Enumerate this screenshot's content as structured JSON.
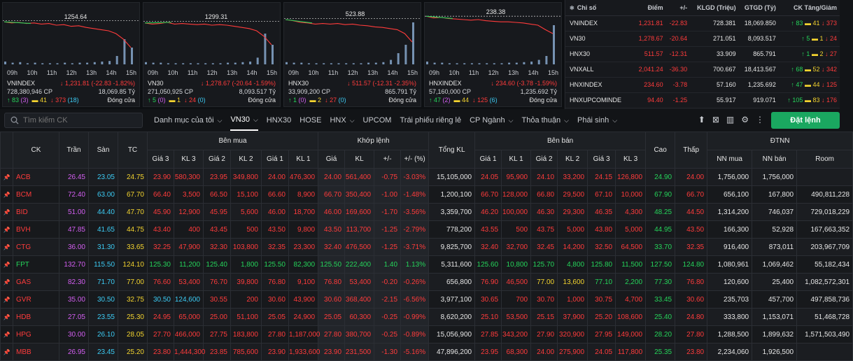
{
  "mini_charts": [
    {
      "name": "VNINDEX",
      "ref": "1254.64",
      "change": "1,231.81 (-22.83 -1.82%)",
      "volume": "728,380,946 CP",
      "value": "18,069.85 Tỷ",
      "up": "83",
      "up_c": "(3)",
      "flat": "41",
      "down": "373",
      "down_f": "(18)",
      "status": "Đóng cửa"
    },
    {
      "name": "VN30",
      "ref": "1299.31",
      "change": "1,278.67 (-20.64 -1.59%)",
      "volume": "271,050,925 CP",
      "value": "8,093.517 Tỷ",
      "up": "5",
      "up_c": "(0)",
      "flat": "1",
      "down": "24",
      "down_f": "(0)",
      "status": "Đóng cửa"
    },
    {
      "name": "HNX30",
      "ref": "523.88",
      "change": "511.57 (-12.31 -2.35%)",
      "volume": "33,909,200 CP",
      "value": "865.791 Tỷ",
      "up": "1",
      "up_c": "(0)",
      "flat": "2",
      "down": "27",
      "down_f": "(0)",
      "status": "Đóng cửa"
    },
    {
      "name": "HNXINDEX",
      "ref": "238.38",
      "change": "234.60 (-3.78 -1.59%)",
      "volume": "57,160,000 CP",
      "value": "1,235.692 Tỷ",
      "up": "47",
      "up_c": "(2)",
      "flat": "44",
      "down": "125",
      "down_f": "(6)",
      "status": "Đóng cửa"
    }
  ],
  "time_ticks": [
    "09h",
    "10h",
    "11h",
    "12h",
    "13h",
    "14h",
    "15h"
  ],
  "index_table": {
    "headers": [
      "Chỉ số",
      "Điểm",
      "+/-",
      "KLGD (Triệu)",
      "GTGD (Tỷ)",
      "CK Tăng/Giảm"
    ],
    "rows": [
      {
        "name": "VNINDEX",
        "point": "1,231.81",
        "chg": "-22.83",
        "vol": "728.381",
        "val": "18,069.850",
        "up": "83",
        "flat": "41",
        "down": "373"
      },
      {
        "name": "VN30",
        "point": "1,278.67",
        "chg": "-20.64",
        "vol": "271.051",
        "val": "8,093.517",
        "up": "5",
        "flat": "1",
        "down": "24"
      },
      {
        "name": "HNX30",
        "point": "511.57",
        "chg": "-12.31",
        "vol": "33.909",
        "val": "865.791",
        "up": "1",
        "flat": "2",
        "down": "27"
      },
      {
        "name": "VNXALL",
        "point": "2,041.24",
        "chg": "-36.30",
        "vol": "700.667",
        "val": "18,413.567",
        "up": "68",
        "flat": "52",
        "down": "342"
      },
      {
        "name": "HNXINDEX",
        "point": "234.60",
        "chg": "-3.78",
        "vol": "57.160",
        "val": "1,235.692",
        "up": "47",
        "flat": "44",
        "down": "125"
      },
      {
        "name": "HNXUPCOMINDE",
        "point": "94.40",
        "chg": "-1.25",
        "vol": "55.917",
        "val": "919.071",
        "up": "105",
        "flat": "83",
        "down": "176"
      }
    ]
  },
  "toolbar": {
    "search_placeholder": "Tìm kiếm CK",
    "tabs": [
      "Danh mục của tôi",
      "VN30",
      "HNX30",
      "HOSE",
      "HNX",
      "UPCOM",
      "Trái phiếu riêng lẻ",
      "CP Ngành",
      "Thỏa thuận",
      "Phái sinh"
    ],
    "order_label": "Đặt lệnh"
  },
  "board": {
    "group_headers": {
      "buy": "Bên mua",
      "match": "Khớp lệnh",
      "sell": "Bên bán",
      "foreign": "ĐTNN"
    },
    "headers": {
      "ck": "CK",
      "tran": "Trần",
      "san": "Sàn",
      "tc": "TC",
      "g3": "Giá 3",
      "kl3": "KL 3",
      "g2": "Giá 2",
      "kl2": "KL 2",
      "g1": "Giá 1",
      "kl1": "KL 1",
      "mp": "Giá",
      "mv": "KL",
      "mc": "+/-",
      "mpct": "+/- (%)",
      "total": "Tổng KL",
      "s1": "Giá 1",
      "sv1": "KL 1",
      "s2": "Giá 2",
      "sv2": "KL 2",
      "s3": "Giá 3",
      "sv3": "KL 3",
      "high": "Cao",
      "low": "Thấp",
      "nnbuy": "NN mua",
      "nnsell": "NN bán",
      "room": "Room"
    },
    "rows": [
      [
        "ACB",
        "26.45",
        "23.05",
        "24.75",
        "23.90",
        "580,300",
        "23.95",
        "349,800",
        "24.00",
        "476,300",
        "24.00",
        "561,400",
        "-0.75",
        "-3.03%",
        "15,105,000",
        "24.05",
        "95,900",
        "24.10",
        "33,200",
        "24.15",
        "126,800",
        "24.90",
        "24.00",
        "1,756,000",
        "1,756,000",
        ""
      ],
      [
        "BCM",
        "72.40",
        "63.00",
        "67.70",
        "66.40",
        "3,500",
        "66.50",
        "15,100",
        "66.60",
        "8,900",
        "66.70",
        "350,400",
        "-1.00",
        "-1.48%",
        "1,200,100",
        "66.70",
        "128,000",
        "66.80",
        "29,500",
        "67.10",
        "10,000",
        "67.90",
        "66.70",
        "656,100",
        "167,800",
        "490,811,228"
      ],
      [
        "BID",
        "51.00",
        "44.40",
        "47.70",
        "45.90",
        "12,900",
        "45.95",
        "5,600",
        "46.00",
        "18,700",
        "46.00",
        "169,600",
        "-1.70",
        "-3.56%",
        "3,359,700",
        "46.20",
        "100,000",
        "46.30",
        "29,300",
        "46.35",
        "4,300",
        "48.25",
        "44.50",
        "1,314,200",
        "746,037",
        "729,018,229"
      ],
      [
        "BVH",
        "47.85",
        "41.65",
        "44.75",
        "43.40",
        "400",
        "43.45",
        "500",
        "43.50",
        "9,800",
        "43.50",
        "113,700",
        "-1.25",
        "-2.79%",
        "778,200",
        "43.55",
        "500",
        "43.75",
        "5,000",
        "43.80",
        "5,000",
        "44.95",
        "43.50",
        "166,300",
        "52,928",
        "167,663,352"
      ],
      [
        "CTG",
        "36.00",
        "31.30",
        "33.65",
        "32.25",
        "47,900",
        "32.30",
        "103,800",
        "32.35",
        "23,300",
        "32.40",
        "476,500",
        "-1.25",
        "-3.71%",
        "9,825,700",
        "32.40",
        "32,700",
        "32.45",
        "14,200",
        "32.50",
        "64,500",
        "33.70",
        "32.35",
        "916,400",
        "873,011",
        "203,967,709"
      ],
      [
        "FPT",
        "132.70",
        "115.50",
        "124.10",
        "125.30",
        "11,200",
        "125.40",
        "1,800",
        "125.50",
        "82,300",
        "125.50",
        "222,400",
        "1.40",
        "1.13%",
        "5,311,600",
        "125.60",
        "10,800",
        "125.70",
        "4,800",
        "125.80",
        "11,500",
        "127.50",
        "124.80",
        "1,080,961",
        "1,069,462",
        "55,182,434"
      ],
      [
        "GAS",
        "82.30",
        "71.70",
        "77.00",
        "76.60",
        "53,400",
        "76.70",
        "39,800",
        "76.80",
        "9,100",
        "76.80",
        "53,400",
        "-0.20",
        "-0.26%",
        "656,800",
        "76.90",
        "46,500",
        "77.00",
        "13,600",
        "77.10",
        "2,200",
        "77.30",
        "76.80",
        "120,600",
        "25,400",
        "1,082,572,301"
      ],
      [
        "GVR",
        "35.00",
        "30.50",
        "32.75",
        "30.50",
        "124,600",
        "30.55",
        "200",
        "30.60",
        "43,900",
        "30.60",
        "368,400",
        "-2.15",
        "-6.56%",
        "3,977,100",
        "30.65",
        "700",
        "30.70",
        "1,000",
        "30.75",
        "4,700",
        "33.45",
        "30.60",
        "235,703",
        "457,700",
        "497,858,736"
      ],
      [
        "HDB",
        "27.05",
        "23.55",
        "25.30",
        "24.95",
        "65,000",
        "25.00",
        "51,100",
        "25.05",
        "24,900",
        "25.05",
        "60,300",
        "-0.25",
        "-0.99%",
        "8,620,200",
        "25.10",
        "53,500",
        "25.15",
        "37,900",
        "25.20",
        "108,600",
        "25.40",
        "24.80",
        "333,800",
        "1,153,071",
        "51,468,728"
      ],
      [
        "HPG",
        "30.00",
        "26.10",
        "28.05",
        "27.70",
        "466,000",
        "27.75",
        "183,800",
        "27.80",
        "1,187,000",
        "27.80",
        "380,700",
        "-0.25",
        "-0.89%",
        "15,056,900",
        "27.85",
        "343,200",
        "27.90",
        "320,900",
        "27.95",
        "149,000",
        "28.20",
        "27.80",
        "1,288,500",
        "1,899,632",
        "1,571,503,490"
      ],
      [
        "MBB",
        "26.95",
        "23.45",
        "25.20",
        "23.80",
        "1,444,300",
        "23.85",
        "785,600",
        "23.90",
        "1,933,600",
        "23.90",
        "231,500",
        "-1.30",
        "-5.16%",
        "47,896,200",
        "23.95",
        "68,300",
        "24.00",
        "275,900",
        "24.05",
        "117,800",
        "25.35",
        "23.80",
        "2,234,060",
        "1,926,500",
        ""
      ]
    ]
  },
  "colors": {
    "up": "#25d35a",
    "down": "#ff3b3b",
    "ref": "#f3d32f",
    "ceil": "#d25ef0",
    "floor": "#3ccbf4",
    "accent": "#1aa760"
  }
}
